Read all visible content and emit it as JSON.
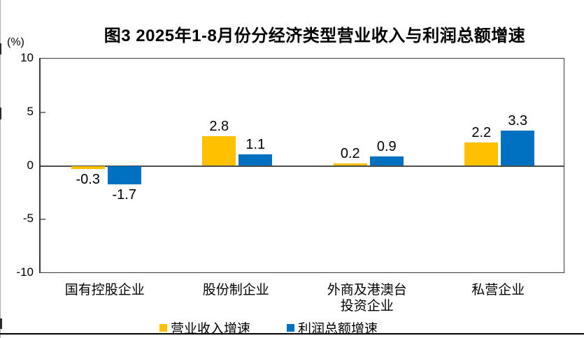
{
  "chart_data": {
    "type": "bar",
    "title": "图3  2025年1-8月份分经济类型营业收入与利润总额增速",
    "unit_label": "(%)",
    "categories": [
      "国有控股企业",
      "股份制企业",
      "外商及港澳台\n投资企业",
      "私营企业"
    ],
    "series": [
      {
        "name": "营业收入增速",
        "color": "#FFC000",
        "values": [
          -0.3,
          2.8,
          0.2,
          2.2
        ]
      },
      {
        "name": "利润总额增速",
        "color": "#0070C0",
        "values": [
          -1.7,
          1.1,
          0.9,
          3.3
        ]
      }
    ],
    "ylim": [
      -10,
      10
    ],
    "yticks": [
      10,
      5,
      0,
      -5,
      -10
    ],
    "grid": false,
    "legend_position": "bottom",
    "value_label_format": "one-decimal"
  }
}
